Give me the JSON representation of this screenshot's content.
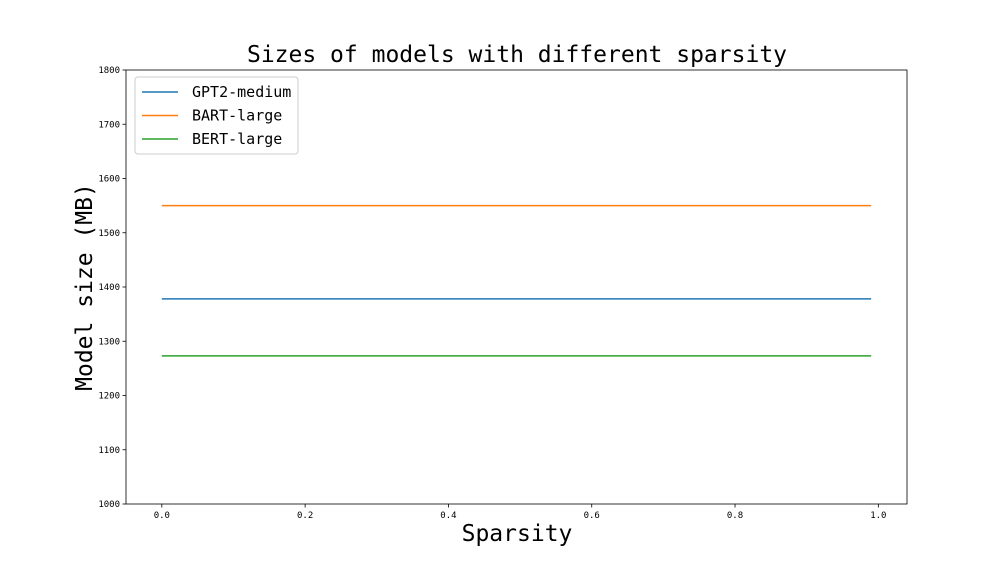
{
  "chart_data": {
    "type": "line",
    "title": "Sizes of models with different sparsity",
    "xlabel": "Sparsity",
    "ylabel": "Model size (MB)",
    "xlim": [
      -0.05,
      1.04
    ],
    "ylim": [
      1000,
      1800
    ],
    "xticks": [
      0.0,
      0.2,
      0.4,
      0.6,
      0.8,
      1.0
    ],
    "xtick_labels": [
      "0.0",
      "0.2",
      "0.4",
      "0.6",
      "0.8",
      "1.0"
    ],
    "yticks": [
      1000,
      1100,
      1200,
      1300,
      1400,
      1500,
      1600,
      1700,
      1800
    ],
    "ytick_labels": [
      "1000",
      "1100",
      "1200",
      "1300",
      "1400",
      "1500",
      "1600",
      "1700",
      "1800"
    ],
    "grid": false,
    "legend_position": "top-left",
    "series": [
      {
        "name": "GPT2-medium",
        "color": "#1f77b4",
        "x": [
          0.0,
          0.99
        ],
        "y": [
          1378,
          1378
        ]
      },
      {
        "name": "BART-large",
        "color": "#ff7f0e",
        "x": [
          0.0,
          0.99
        ],
        "y": [
          1550,
          1550
        ]
      },
      {
        "name": "BERT-large",
        "color": "#2ca02c",
        "x": [
          0.0,
          0.99
        ],
        "y": [
          1273,
          1273
        ]
      }
    ]
  }
}
